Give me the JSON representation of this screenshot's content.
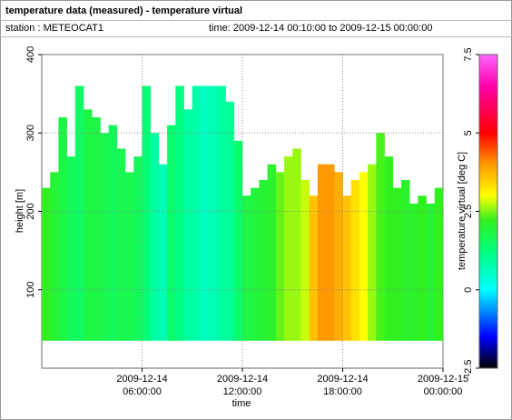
{
  "header": {
    "title": "temperature data (measured) - temperature virtual",
    "station": "station : METEOCAT1",
    "time": "time: 2009-12-14 00:10:00 to 2009-12-15 00:00:00"
  },
  "chart_data": {
    "type": "heatmap",
    "xlabel": "time",
    "ylabel": "height [m]",
    "colorbar_label": "temperature virtual [deg C]",
    "x": [
      "2009-12-14 00:00:00",
      "2009-12-14 00:30:00",
      "2009-12-14 01:00:00",
      "2009-12-14 01:30:00",
      "2009-12-14 02:00:00",
      "2009-12-14 02:30:00",
      "2009-12-14 03:00:00",
      "2009-12-14 03:30:00",
      "2009-12-14 04:00:00",
      "2009-12-14 04:30:00",
      "2009-12-14 05:00:00",
      "2009-12-14 05:30:00",
      "2009-12-14 06:00:00",
      "2009-12-14 06:30:00",
      "2009-12-14 07:00:00",
      "2009-12-14 07:30:00",
      "2009-12-14 08:00:00",
      "2009-12-14 08:30:00",
      "2009-12-14 09:00:00",
      "2009-12-14 09:30:00",
      "2009-12-14 10:00:00",
      "2009-12-14 10:30:00",
      "2009-12-14 11:00:00",
      "2009-12-14 11:30:00",
      "2009-12-14 12:00:00",
      "2009-12-14 12:30:00",
      "2009-12-14 13:00:00",
      "2009-12-14 13:30:00",
      "2009-12-14 14:00:00",
      "2009-12-14 14:30:00",
      "2009-12-14 15:00:00",
      "2009-12-14 15:30:00",
      "2009-12-14 16:00:00",
      "2009-12-14 16:30:00",
      "2009-12-14 17:00:00",
      "2009-12-14 17:30:00",
      "2009-12-14 18:00:00",
      "2009-12-14 18:30:00",
      "2009-12-14 19:00:00",
      "2009-12-14 19:30:00",
      "2009-12-14 20:00:00",
      "2009-12-14 20:30:00",
      "2009-12-14 21:00:00",
      "2009-12-14 21:30:00",
      "2009-12-14 22:00:00",
      "2009-12-14 22:30:00",
      "2009-12-14 23:00:00",
      "2009-12-14 23:30:00"
    ],
    "base_height": 35,
    "heights": [
      230,
      250,
      320,
      270,
      360,
      330,
      320,
      300,
      310,
      280,
      250,
      270,
      360,
      300,
      260,
      310,
      360,
      330,
      360,
      360,
      360,
      360,
      340,
      290,
      220,
      230,
      240,
      260,
      250,
      270,
      280,
      240,
      220,
      260,
      260,
      250,
      220,
      240,
      250,
      260,
      300,
      270,
      230,
      240,
      210,
      220,
      210,
      230
    ],
    "values": [
      2.2,
      2.0,
      1.8,
      1.6,
      1.5,
      1.8,
      1.8,
      1.7,
      1.6,
      1.7,
      1.7,
      1.6,
      1.3,
      0.9,
      0.7,
      1.4,
      1.2,
      0.9,
      0.8,
      0.6,
      0.7,
      0.9,
      1.0,
      1.4,
      1.8,
      1.9,
      2.0,
      2.1,
      2.4,
      2.6,
      2.6,
      2.8,
      3.6,
      4.0,
      4.0,
      3.8,
      3.6,
      3.3,
      3.0,
      2.6,
      2.3,
      2.2,
      2.2,
      2.1,
      2.1,
      2.2,
      2.0,
      2.2
    ],
    "xlim": [
      "2009-12-14 00:00:00",
      "2009-12-15 00:00:00"
    ],
    "xticks": [
      {
        "value": "2009-12-14 06:00:00",
        "label": "2009-12-14 06:00:00"
      },
      {
        "value": "2009-12-14 12:00:00",
        "label": "2009-12-14 12:00:00"
      },
      {
        "value": "2009-12-14 18:00:00",
        "label": "2009-12-14 18:00:00"
      },
      {
        "value": "2009-12-15 00:00:00",
        "label": "2009-12-15 00:00:00"
      }
    ],
    "ylim": [
      0,
      400
    ],
    "yticks": [
      100,
      200,
      300,
      400
    ],
    "clim": [
      -2.5,
      7.5
    ],
    "cticks": [
      -2.5,
      0,
      2.5,
      5,
      7.5
    ],
    "colorscale": [
      [
        -2.5,
        "#000000"
      ],
      [
        -1.5,
        "#0000ff"
      ],
      [
        0,
        "#00ffff"
      ],
      [
        1.2,
        "#00ff80"
      ],
      [
        2.2,
        "#30f020"
      ],
      [
        3.0,
        "#ffff00"
      ],
      [
        4.0,
        "#ff9900"
      ],
      [
        5.0,
        "#ff0000"
      ],
      [
        6.5,
        "#ff00aa"
      ],
      [
        7.5,
        "#ff66ff"
      ]
    ],
    "grid": true
  }
}
